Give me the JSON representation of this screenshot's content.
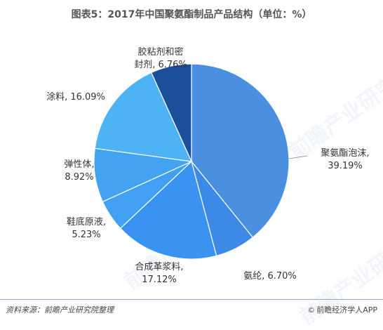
{
  "title": "图表5：2017年中国聚氨酯制品产品结构（单位：%）",
  "footer": {
    "source": "资料来源：前瞻产业研究院整理",
    "publisher": "前瞻经济学人APP",
    "copyright_icon": "©"
  },
  "watermark": "前瞻产业研究院",
  "chart_data": {
    "type": "pie",
    "title": "图表5：2017年中国聚氨酯制品产品结构（单位：%）",
    "unit": "%",
    "start_angle_deg": 0,
    "direction": "clockwise",
    "slices": [
      {
        "label_lines": [
          "聚氨酯泡沫,",
          "39.19%"
        ],
        "category": "聚氨酯泡沫",
        "value": 39.19,
        "color": "#4a8fe0"
      },
      {
        "label_lines": [
          "氨纶, 6.70%"
        ],
        "category": "氨纶",
        "value": 6.7,
        "color": "#3d8ae6"
      },
      {
        "label_lines": [
          "合成革浆料,",
          "17.12%"
        ],
        "category": "合成革浆料",
        "value": 17.12,
        "color": "#3a93f0"
      },
      {
        "label_lines": [
          "鞋底原液,",
          "5.23%"
        ],
        "category": "鞋底原液",
        "value": 5.23,
        "color": "#42a0f2"
      },
      {
        "label_lines": [
          "弹性体,",
          "8.92%"
        ],
        "category": "弹性体",
        "value": 8.92,
        "color": "#43a3f2"
      },
      {
        "label_lines": [
          "涂料, 16.09%"
        ],
        "category": "涂料",
        "value": 16.09,
        "color": "#4db3f5"
      },
      {
        "label_lines": [
          "胶粘剂和密",
          "封剂, 6.76%"
        ],
        "category": "胶粘剂和密封剂",
        "value": 6.76,
        "color": "#1b4f9c"
      }
    ]
  }
}
